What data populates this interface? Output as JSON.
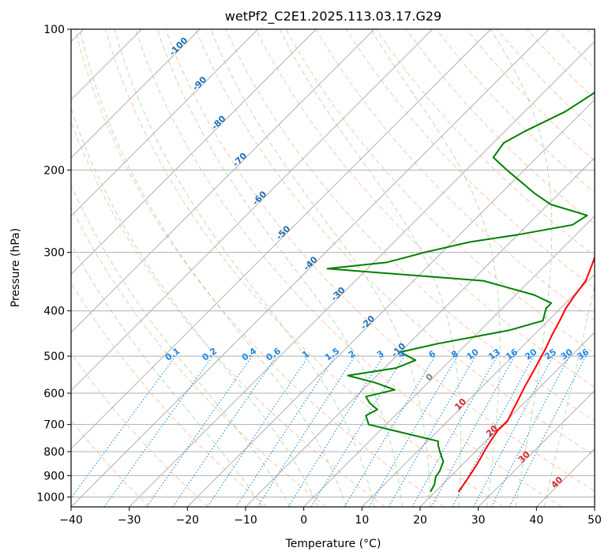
{
  "chart_data": {
    "type": "line",
    "title": "wetPf2_C2E1.2025.113.03.17.G29",
    "xlabel": "Temperature (°C)",
    "ylabel": "Pressure (hPa)",
    "xlim": [
      -40,
      50
    ],
    "ylim": [
      1050,
      100
    ],
    "y_scale": "log",
    "x_ticks": [
      "−40",
      "−30",
      "−20",
      "−10",
      "0",
      "10",
      "20",
      "30",
      "40",
      "50"
    ],
    "y_ticks": [
      "100",
      "200",
      "300",
      "400",
      "500",
      "600",
      "700",
      "800",
      "900",
      "1000"
    ],
    "grid": true,
    "diagram": "skew-T log-P",
    "series": [
      {
        "key": "temperature",
        "color": "#ff0000",
        "points": [
          [
            24.0,
            975
          ],
          [
            23.4,
            920
          ],
          [
            22.6,
            860
          ],
          [
            21.9,
            820
          ],
          [
            21.3,
            790
          ],
          [
            20.8,
            760
          ],
          [
            20.2,
            720
          ],
          [
            20.3,
            690
          ],
          [
            19.0,
            640
          ],
          [
            17.3,
            580
          ],
          [
            15.9,
            530
          ],
          [
            14.3,
            480
          ],
          [
            13.1,
            450
          ],
          [
            12.0,
            420
          ],
          [
            10.9,
            395
          ],
          [
            10.2,
            370
          ],
          [
            9.6,
            345
          ],
          [
            8.0,
            320
          ],
          [
            6.2,
            295
          ],
          [
            4.7,
            275
          ],
          [
            4.1,
            250
          ],
          [
            3.3,
            225
          ],
          [
            3.0,
            200
          ],
          [
            2.8,
            185
          ],
          [
            1.8,
            165
          ],
          [
            0.3,
            140
          ],
          [
            -1.5,
            120
          ],
          [
            -2.3,
            110
          ],
          [
            -3.5,
            100
          ]
        ]
      },
      {
        "key": "dewpoint",
        "color": "#008000",
        "points": [
          [
            19.2,
            975
          ],
          [
            18.6,
            940
          ],
          [
            17.5,
            905
          ],
          [
            17.2,
            880
          ],
          [
            16.2,
            840
          ],
          [
            13.9,
            800
          ],
          [
            12.5,
            775
          ],
          [
            11.8,
            760
          ],
          [
            -3.0,
            700
          ],
          [
            -5.0,
            670
          ],
          [
            -4.1,
            650
          ],
          [
            -6.5,
            630
          ],
          [
            -8.3,
            610
          ],
          [
            -4.5,
            590
          ],
          [
            -9.0,
            570
          ],
          [
            -15.0,
            550
          ],
          [
            -8.0,
            530
          ],
          [
            -6.0,
            510
          ],
          [
            -10.0,
            490
          ],
          [
            -5.0,
            470
          ],
          [
            5.0,
            440
          ],
          [
            9.1,
            420
          ],
          [
            7.5,
            395
          ],
          [
            7.5,
            385
          ],
          [
            3.2,
            370
          ],
          [
            -8.0,
            345
          ],
          [
            -36.9,
            325
          ],
          [
            -27.7,
            315
          ],
          [
            -23.0,
            300
          ],
          [
            -17.0,
            285
          ],
          [
            -10.0,
            275
          ],
          [
            -2.3,
            262
          ],
          [
            -1.4,
            250
          ],
          [
            -9.5,
            237
          ],
          [
            -14.0,
            225
          ],
          [
            -23.0,
            200
          ],
          [
            -27.5,
            188
          ],
          [
            -28.2,
            175
          ],
          [
            -26.5,
            165
          ],
          [
            -23.0,
            150
          ],
          [
            -21.0,
            135
          ],
          [
            -17.5,
            125
          ],
          [
            -15.2,
            115
          ],
          [
            -10.0,
            103
          ],
          [
            -9.4,
            100
          ]
        ]
      }
    ],
    "annotations": {
      "isotherm_labels": [
        {
          "text": "-100",
          "t": -100,
          "p": 110
        },
        {
          "text": "-90",
          "t": -90,
          "p": 132
        },
        {
          "text": "-80",
          "t": -80,
          "p": 160
        },
        {
          "text": "-70",
          "t": -70,
          "p": 192
        },
        {
          "text": "-60",
          "t": -60,
          "p": 232
        },
        {
          "text": "-50",
          "t": -50,
          "p": 275
        },
        {
          "text": "-40",
          "t": -40,
          "p": 320
        },
        {
          "text": "-30",
          "t": -30,
          "p": 372
        },
        {
          "text": "-20",
          "t": -20,
          "p": 428
        },
        {
          "text": "-10",
          "t": -10,
          "p": 490
        },
        {
          "text": "0",
          "t": 0,
          "p": 560
        },
        {
          "text": "10",
          "t": 10,
          "p": 640
        },
        {
          "text": "20",
          "t": 20,
          "p": 730
        },
        {
          "text": "30",
          "t": 30,
          "p": 830
        },
        {
          "text": "40",
          "t": 40,
          "p": 940
        }
      ],
      "mixing_ratio_labels": [
        "0.1",
        "0.2",
        "0.4",
        "0.6",
        "1",
        "1.5",
        "2",
        "3",
        "4",
        "6",
        "8",
        "10",
        "13",
        "16",
        "20",
        "25",
        "30",
        "36"
      ]
    },
    "colors": {
      "temperature": "#ff0000",
      "dewpoint": "#008000",
      "isotherm_label_cold": "#1f6fb4",
      "isotherm_label_zero": "#808080",
      "isotherm_label_warm": "#d62728",
      "mixing_ratio": "#1e88e5",
      "dry_adiabat": "#ff9966",
      "moist_adiabat": "#66b266",
      "grid": "#b0b0b0"
    }
  }
}
